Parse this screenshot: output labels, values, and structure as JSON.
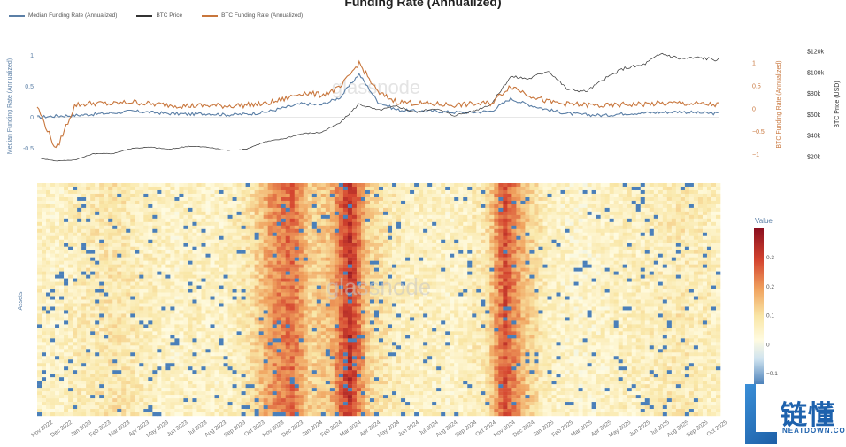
{
  "chart_data": [
    {
      "type": "line",
      "title": "Funding Rate (Annualized)",
      "ylabel_left": "Median Funding Rate (Annualized)",
      "ylabel_right_1": "BTC Funding Rate (Annualized)",
      "ylabel_right_2": "BTC Price (USD)",
      "left_ticks": [
        "1",
        "0.5",
        "0",
        "-0.5"
      ],
      "right1_ticks": [
        "1",
        "0.5",
        "0",
        "−0.5",
        "−1"
      ],
      "right2_ticks": [
        "$120k",
        "$100k",
        "$80k",
        "$60k",
        "$40k",
        "$20k"
      ],
      "left_range": [
        -0.75,
        1.25
      ],
      "right1_range": [
        -1.2,
        1.5
      ],
      "series": [
        {
          "name": "Median Funding Rate (Annualized)",
          "color": "#5b7fa6",
          "x": [
            "2022-10",
            "2022-11",
            "2022-12",
            "2023-01",
            "2023-02",
            "2023-03",
            "2023-04",
            "2023-05",
            "2023-06",
            "2023-07",
            "2023-08",
            "2023-09",
            "2023-10",
            "2023-11",
            "2023-12",
            "2024-01",
            "2024-02",
            "2024-03",
            "2024-04",
            "2024-05",
            "2024-06",
            "2024-07",
            "2024-08",
            "2024-09",
            "2024-10",
            "2024-11",
            "2024-12",
            "2025-01",
            "2025-02",
            "2025-03",
            "2025-04",
            "2025-05",
            "2025-06",
            "2025-07",
            "2025-08",
            "2025-09",
            "2025-10"
          ],
          "values": [
            0.0,
            0.02,
            0.03,
            0.05,
            0.07,
            0.1,
            0.08,
            0.06,
            0.05,
            0.06,
            0.04,
            0.05,
            0.08,
            0.15,
            0.22,
            0.2,
            0.32,
            0.7,
            0.25,
            0.12,
            0.1,
            0.1,
            0.08,
            0.08,
            0.1,
            0.3,
            0.2,
            0.12,
            0.06,
            0.04,
            0.03,
            0.06,
            0.07,
            0.08,
            0.09,
            0.07,
            0.06
          ]
        },
        {
          "name": "BTC Price",
          "color": "#333333",
          "x": [
            "2022-10",
            "2022-11",
            "2022-12",
            "2023-01",
            "2023-02",
            "2023-03",
            "2023-04",
            "2023-05",
            "2023-06",
            "2023-07",
            "2023-08",
            "2023-09",
            "2023-10",
            "2023-11",
            "2023-12",
            "2024-01",
            "2024-02",
            "2024-03",
            "2024-04",
            "2024-05",
            "2024-06",
            "2024-07",
            "2024-08",
            "2024-09",
            "2024-10",
            "2024-11",
            "2024-12",
            "2025-01",
            "2025-02",
            "2025-03",
            "2025-04",
            "2025-05",
            "2025-06",
            "2025-07",
            "2025-08",
            "2025-09",
            "2025-10"
          ],
          "values": [
            19,
            16,
            17,
            23,
            23,
            28,
            29,
            27,
            30,
            29,
            26,
            27,
            34,
            37,
            42,
            43,
            52,
            70,
            64,
            68,
            62,
            66,
            59,
            63,
            70,
            96,
            94,
            102,
            84,
            82,
            94,
            104,
            107,
            118,
            113,
            114,
            112
          ]
        },
        {
          "name": "BTC Funding Rate (Annualized)",
          "color": "#c8763c",
          "x": [
            "2022-10",
            "2022-11",
            "2022-12",
            "2023-01",
            "2023-02",
            "2023-03",
            "2023-04",
            "2023-05",
            "2023-06",
            "2023-07",
            "2023-08",
            "2023-09",
            "2023-10",
            "2023-11",
            "2023-12",
            "2024-01",
            "2024-02",
            "2024-03",
            "2024-04",
            "2024-05",
            "2024-06",
            "2024-07",
            "2024-08",
            "2024-09",
            "2024-10",
            "2024-11",
            "2024-12",
            "2025-01",
            "2025-02",
            "2025-03",
            "2025-04",
            "2025-05",
            "2025-06",
            "2025-07",
            "2025-08",
            "2025-09",
            "2025-10"
          ],
          "values": [
            0.05,
            -0.9,
            0.08,
            0.12,
            0.1,
            0.15,
            0.1,
            0.08,
            0.06,
            0.07,
            0.06,
            0.08,
            0.1,
            0.2,
            0.35,
            0.3,
            0.45,
            1.0,
            0.35,
            0.15,
            0.12,
            0.1,
            0.08,
            0.1,
            0.12,
            0.5,
            0.3,
            0.15,
            0.1,
            0.08,
            0.06,
            0.09,
            0.1,
            0.11,
            0.12,
            0.1,
            0.08
          ]
        }
      ]
    },
    {
      "type": "heatmap",
      "ylabel": "Assets",
      "colorbar_title": "Value",
      "colorbar_ticks": [
        "0.3",
        "0.2",
        "0.1",
        "0",
        "−0.1"
      ],
      "colorbar_range": [
        -0.15,
        0.4
      ],
      "x_categories": [
        "Nov 2022",
        "Dec 2022",
        "Jan 2023",
        "Feb 2023",
        "Mar 2023",
        "Apr 2023",
        "May 2023",
        "Jun 2023",
        "Jul 2023",
        "Aug 2023",
        "Sep 2023",
        "Oct 2023",
        "Nov 2023",
        "Dec 2023",
        "Jan 2024",
        "Feb 2024",
        "Mar 2024",
        "Apr 2024",
        "May 2024",
        "Jun 2024",
        "Jul 2024",
        "Aug 2024",
        "Sep 2024",
        "Oct 2024",
        "Nov 2024",
        "Dec 2024",
        "Jan 2025",
        "Feb 2025",
        "Mar 2025",
        "Apr 2025",
        "May 2025",
        "Jun 2025",
        "Jul 2025",
        "Aug 2025",
        "Sep 2025",
        "Oct 2025"
      ],
      "column_mean_values": [
        0.06,
        0.05,
        0.07,
        0.08,
        0.09,
        0.07,
        0.06,
        0.05,
        0.06,
        0.05,
        0.06,
        0.1,
        0.2,
        0.25,
        0.12,
        0.15,
        0.33,
        0.12,
        0.08,
        0.06,
        0.06,
        0.05,
        0.06,
        0.08,
        0.28,
        0.15,
        0.07,
        0.05,
        0.04,
        0.05,
        0.06,
        0.06,
        0.07,
        0.08,
        0.07,
        0.06
      ]
    }
  ],
  "watermark_top": "glassnode",
  "watermark_bottom": "glassnode",
  "logo": {
    "main": "链懂",
    "sub": "NEATDOWN.COM"
  }
}
